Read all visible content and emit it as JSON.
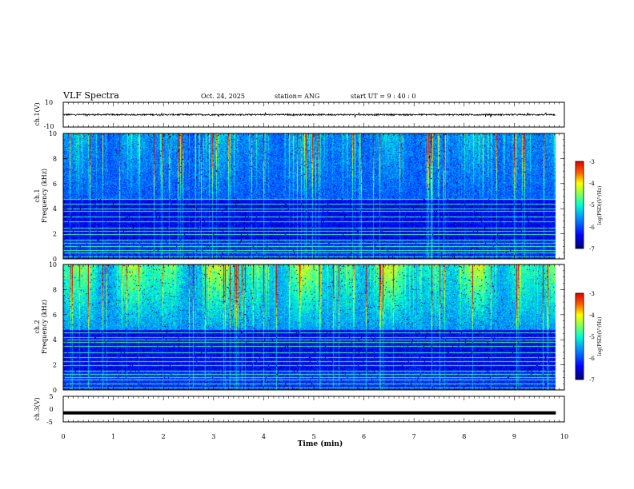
{
  "header": {
    "title": "VLF Spectra",
    "date": "Oct. 24, 2025",
    "station": "station= ANG",
    "start": "start  UT =   9  : 40 : 0"
  },
  "chart_data": [
    {
      "type": "line",
      "name": "ch1-waveform",
      "ylabel": "ch.1(V)",
      "ylim": [
        -10,
        10
      ],
      "yticks": [
        "10",
        "-10"
      ],
      "baseline": 0,
      "noise_amplitude": 0.6
    },
    {
      "type": "heatmap",
      "name": "ch1-spectrogram",
      "ylabel_line1": "ch.1",
      "ylabel_line2": "Frequency  (kHz)",
      "ylim": [
        0,
        10
      ],
      "yticks": [
        "0",
        "2",
        "4",
        "6",
        "8",
        "10"
      ],
      "xlim": [
        0,
        10
      ],
      "data_end_min": 9.83,
      "colorbar": {
        "label": "log(PSD)(V²/Hz)",
        "range": [
          -7,
          -3
        ],
        "ticks": [
          "-3",
          "-4",
          "-5",
          "-6",
          "-7"
        ]
      },
      "horizontal_lines_khz": [
        0.2,
        0.5,
        0.7,
        1.0,
        1.3,
        1.5,
        2.0,
        2.2,
        2.5,
        3.0,
        3.4,
        3.8,
        4.0,
        4.4,
        4.8
      ]
    },
    {
      "type": "heatmap",
      "name": "ch2-spectrogram",
      "ylabel_line1": "ch.2",
      "ylabel_line2": "Frequency  (kHz)",
      "ylim": [
        0,
        10
      ],
      "yticks": [
        "0",
        "2",
        "4",
        "6",
        "8",
        "10"
      ],
      "xlim": [
        0,
        10
      ],
      "data_end_min": 9.83,
      "colorbar": {
        "label": "log(PSD)(V²/Hz)",
        "range": [
          -7,
          -3
        ],
        "ticks": [
          "-3",
          "-4",
          "-5",
          "-6",
          "-7"
        ]
      },
      "horizontal_lines_khz": [
        0.2,
        0.5,
        0.8,
        1.0,
        1.3,
        1.5,
        2.0,
        2.3,
        2.6,
        3.0,
        3.5,
        3.8,
        4.0,
        4.2,
        4.6
      ]
    },
    {
      "type": "line",
      "name": "ch3-waveform",
      "ylabel": "ch.3(V)",
      "ylim": [
        -5,
        5
      ],
      "yticks": [
        "5",
        "0",
        "-5"
      ],
      "baseline": -1.5
    }
  ],
  "xaxis": {
    "label": "Time  (min)",
    "ticks": [
      "0",
      "1",
      "2",
      "3",
      "4",
      "5",
      "6",
      "7",
      "8",
      "9",
      "10"
    ]
  },
  "colors": {
    "background": "#ffffff",
    "axis": "#000000",
    "colormap": [
      "#000080",
      "#0000ff",
      "#0080ff",
      "#00ffff",
      "#80ff80",
      "#ffff00",
      "#ff8000",
      "#ff0000",
      "#800000"
    ]
  }
}
